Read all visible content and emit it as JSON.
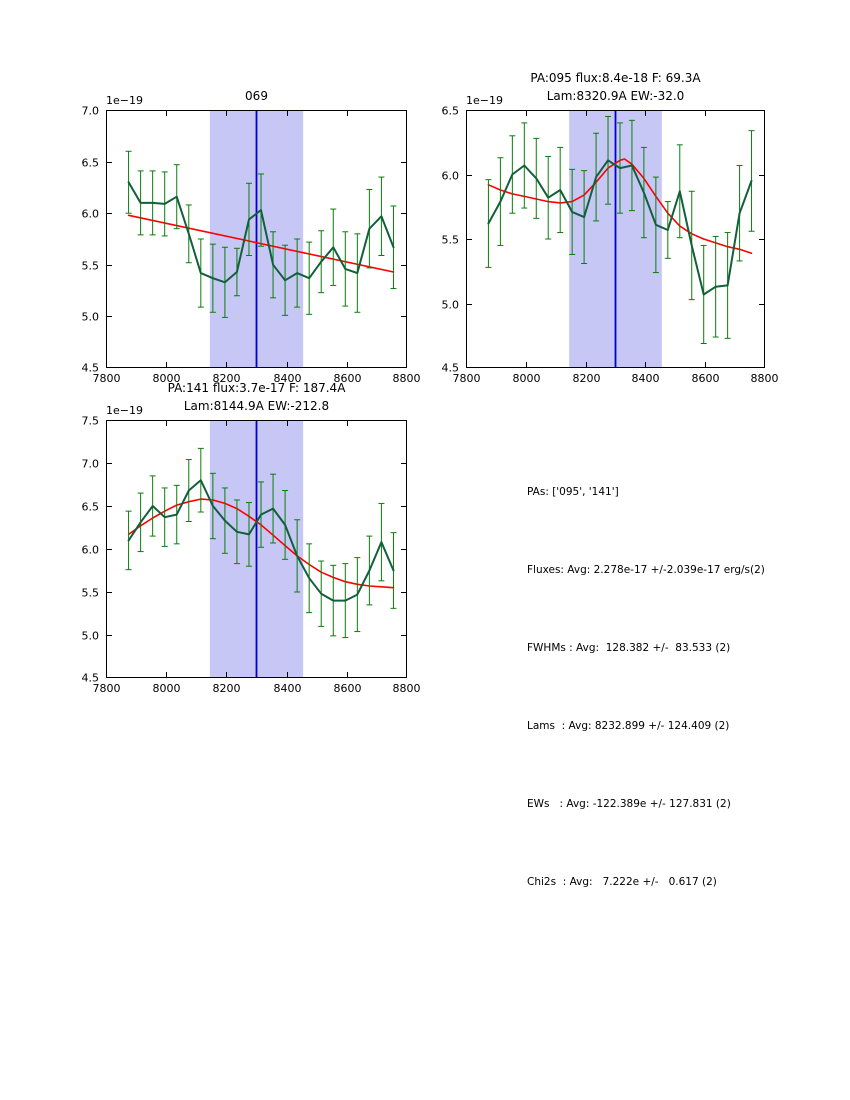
{
  "colors": {
    "background": "#ffffff",
    "axes": "#000000",
    "band": "#c7c7f5",
    "center_line": "#0000cc",
    "fit": "#ff0000",
    "data_line": "#11603b",
    "error_bar": "#0b7d0b"
  },
  "stats": {
    "lines": [
      "PAs: ['095', '141']",
      "Fluxes: Avg: 2.278e-17 +/-2.039e-17 erg/s(2)",
      "FWHMs : Avg:  128.382 +/-  83.533 (2)",
      "Lams  : Avg: 8232.899 +/- 124.409 (2)",
      "EWs   : Avg: -122.389e +/- 127.831 (2)",
      "Chi2s  : Avg:   7.222e +/-   0.617 (2)"
    ]
  },
  "chart_data": [
    {
      "id": "069",
      "type": "line",
      "title_line1": "069",
      "offset_label": "1e−19",
      "xlabel": "",
      "ylabel": "",
      "xlim": [
        7800,
        8800
      ],
      "ylim": [
        4.5,
        7.0
      ],
      "xticks": [
        7800,
        8000,
        8200,
        8400,
        8600,
        8800
      ],
      "yticks": [
        4.5,
        5.0,
        5.5,
        6.0,
        6.5,
        7.0
      ],
      "grid": false,
      "band": {
        "xmin": 8145,
        "xmax": 8455,
        "center": 8300
      },
      "spectrum": {
        "x": [
          7875,
          7915,
          7955,
          7995,
          8035,
          8075,
          8115,
          8155,
          8195,
          8235,
          8275,
          8315,
          8355,
          8395,
          8435,
          8475,
          8515,
          8555,
          8595,
          8635,
          8675,
          8715,
          8755
        ],
        "y": [
          6.3,
          6.1,
          6.1,
          6.09,
          6.16,
          5.8,
          5.42,
          5.37,
          5.33,
          5.43,
          5.94,
          6.03,
          5.5,
          5.35,
          5.42,
          5.37,
          5.53,
          5.67,
          5.46,
          5.42,
          5.85,
          5.97,
          5.67
        ],
        "yerr": [
          0.3,
          0.31,
          0.31,
          0.31,
          0.31,
          0.28,
          0.33,
          0.33,
          0.34,
          0.23,
          0.35,
          0.35,
          0.32,
          0.34,
          0.33,
          0.35,
          0.3,
          0.37,
          0.36,
          0.38,
          0.38,
          0.38,
          0.4
        ]
      },
      "fit": {
        "x": [
          7875,
          8755
        ],
        "y": [
          5.98,
          5.43
        ]
      }
    },
    {
      "id": "pa095",
      "type": "line",
      "title_line1": "PA:095 flux:8.4e-18 F: 69.3A",
      "title_line2": "Lam:8320.9A EW:-32.0",
      "offset_label": "1e−19",
      "xlabel": "",
      "ylabel": "",
      "xlim": [
        7800,
        8800
      ],
      "ylim": [
        4.5,
        6.5
      ],
      "xticks": [
        7800,
        8000,
        8200,
        8400,
        8600,
        8800
      ],
      "yticks": [
        4.5,
        5.0,
        5.5,
        6.0,
        6.5
      ],
      "grid": false,
      "band": {
        "xmin": 8145,
        "xmax": 8455,
        "center": 8300
      },
      "spectrum": {
        "x": [
          7875,
          7915,
          7955,
          7995,
          8035,
          8075,
          8115,
          8155,
          8195,
          8235,
          8275,
          8315,
          8355,
          8395,
          8435,
          8475,
          8515,
          8555,
          8595,
          8635,
          8675,
          8715,
          8755
        ],
        "y": [
          5.62,
          5.79,
          6.0,
          6.07,
          5.97,
          5.82,
          5.88,
          5.71,
          5.67,
          5.98,
          6.11,
          6.05,
          6.07,
          5.86,
          5.61,
          5.57,
          5.87,
          5.45,
          5.07,
          5.13,
          5.14,
          5.7,
          5.95
        ],
        "yerr": [
          0.34,
          0.34,
          0.3,
          0.33,
          0.31,
          0.32,
          0.33,
          0.33,
          0.36,
          0.34,
          0.34,
          0.35,
          0.35,
          0.35,
          0.37,
          0.22,
          0.36,
          0.42,
          0.38,
          0.39,
          0.41,
          0.37,
          0.39
        ]
      },
      "fit": {
        "x": [
          7875,
          7915,
          7955,
          7995,
          8035,
          8075,
          8115,
          8155,
          8195,
          8235,
          8275,
          8315,
          8330,
          8355,
          8395,
          8435,
          8475,
          8515,
          8555,
          8595,
          8635,
          8675,
          8715,
          8755
        ],
        "y": [
          5.92,
          5.88,
          5.85,
          5.83,
          5.81,
          5.79,
          5.78,
          5.79,
          5.84,
          5.94,
          6.05,
          6.11,
          6.12,
          6.08,
          5.97,
          5.83,
          5.7,
          5.6,
          5.54,
          5.5,
          5.47,
          5.44,
          5.42,
          5.39
        ]
      }
    },
    {
      "id": "pa141",
      "type": "line",
      "title_line1": "PA:141 flux:3.7e-17 F: 187.4A",
      "title_line2": "Lam:8144.9A EW:-212.8",
      "offset_label": "1e−19",
      "xlabel": "",
      "ylabel": "",
      "xlim": [
        7800,
        8800
      ],
      "ylim": [
        4.5,
        7.5
      ],
      "xticks": [
        7800,
        8000,
        8200,
        8400,
        8600,
        8800
      ],
      "yticks": [
        4.5,
        5.0,
        5.5,
        6.0,
        6.5,
        7.0,
        7.5
      ],
      "grid": false,
      "band": {
        "xmin": 8145,
        "xmax": 8455,
        "center": 8300
      },
      "spectrum": {
        "x": [
          7875,
          7915,
          7955,
          7995,
          8035,
          8075,
          8115,
          8155,
          8195,
          8235,
          8275,
          8315,
          8355,
          8395,
          8435,
          8475,
          8515,
          8555,
          8595,
          8635,
          8675,
          8715,
          8755
        ],
        "y": [
          6.1,
          6.31,
          6.5,
          6.37,
          6.4,
          6.68,
          6.8,
          6.5,
          6.33,
          6.2,
          6.17,
          6.4,
          6.47,
          6.28,
          5.92,
          5.66,
          5.48,
          5.4,
          5.4,
          5.47,
          5.75,
          6.08,
          5.75
        ],
        "yerr": [
          0.34,
          0.34,
          0.35,
          0.34,
          0.34,
          0.36,
          0.37,
          0.38,
          0.38,
          0.37,
          0.37,
          0.38,
          0.4,
          0.4,
          0.42,
          0.4,
          0.38,
          0.41,
          0.43,
          0.43,
          0.4,
          0.45,
          0.44
        ]
      },
      "fit": {
        "x": [
          7875,
          7915,
          7955,
          7995,
          8035,
          8075,
          8115,
          8155,
          8195,
          8235,
          8275,
          8315,
          8355,
          8395,
          8435,
          8475,
          8515,
          8555,
          8595,
          8635,
          8675,
          8715,
          8755
        ],
        "y": [
          6.17,
          6.27,
          6.36,
          6.44,
          6.51,
          6.55,
          6.58,
          6.57,
          6.53,
          6.47,
          6.38,
          6.28,
          6.16,
          6.04,
          5.92,
          5.82,
          5.73,
          5.67,
          5.62,
          5.59,
          5.57,
          5.56,
          5.55
        ]
      }
    }
  ]
}
